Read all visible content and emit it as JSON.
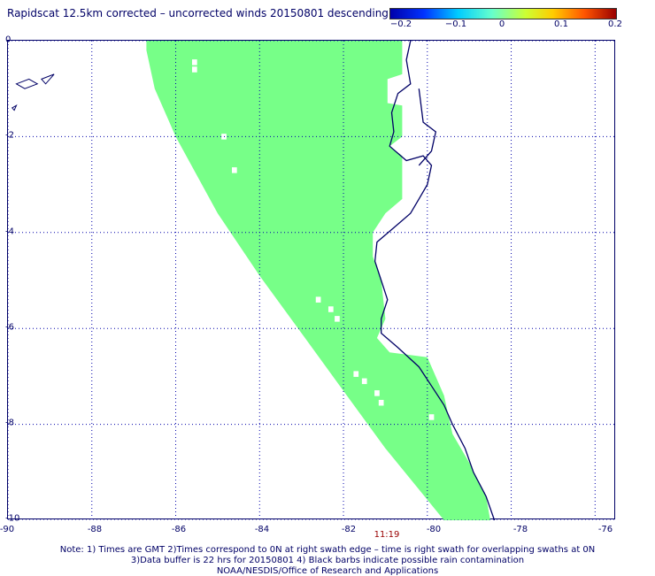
{
  "title": "Rapidscat 12.5km corrected – uncorrected winds 20150801 descending",
  "colorbar": {
    "labels": [
      "−0.2",
      "−0.1",
      "0",
      "0.1",
      "0.2"
    ],
    "range": [
      -0.2,
      0.2
    ]
  },
  "axes": {
    "x_ticks": [
      "-90",
      "-88",
      "-86",
      "-84",
      "-82",
      "-80",
      "-78",
      "-76"
    ],
    "y_ticks": [
      "0",
      "-2",
      "-4",
      "-6",
      "-8",
      "-10"
    ],
    "lon_range": [
      -90,
      -75.5
    ],
    "lat_range": [
      -10,
      0
    ]
  },
  "swath_time": "11:19",
  "notes": [
    "Note: 1) Times are GMT 2)Times correspond to 0N at right swath edge – time is right swath for overlapping swaths at 0N",
    "3)Data buffer is 22 hrs for 20150801 4) Black barbs indicate possible rain contamination",
    "NOAA/NESDIS/Office of Research and Applications"
  ],
  "colors": {
    "swath_fill": "#77ff88",
    "coast": "#000066",
    "grid": "#0000aa",
    "time_label": "#990000"
  },
  "map_data": {
    "swath_polygon_lonlat": [
      [
        -86.7,
        0
      ],
      [
        -80.6,
        0
      ],
      [
        -80.6,
        -0.7
      ],
      [
        -80.95,
        -0.8
      ],
      [
        -80.95,
        -1.3
      ],
      [
        -80.6,
        -1.35
      ],
      [
        -80.6,
        -2.0
      ],
      [
        -80.9,
        -2.2
      ],
      [
        -80.6,
        -2.4
      ],
      [
        -80.6,
        -3.3
      ],
      [
        -81.0,
        -3.6
      ],
      [
        -81.3,
        -4.0
      ],
      [
        -81.3,
        -4.5
      ],
      [
        -81.1,
        -5.0
      ],
      [
        -81.0,
        -5.8
      ],
      [
        -81.2,
        -6.2
      ],
      [
        -80.9,
        -6.5
      ],
      [
        -80.0,
        -6.6
      ],
      [
        -79.6,
        -7.4
      ],
      [
        -79.4,
        -8.2
      ],
      [
        -79.0,
        -8.8
      ],
      [
        -78.6,
        -9.5
      ],
      [
        -78.5,
        -10
      ],
      [
        -79.6,
        -10
      ],
      [
        -81.0,
        -8.5
      ],
      [
        -82.0,
        -7.3
      ],
      [
        -83.0,
        -6.1
      ],
      [
        -84.0,
        -4.9
      ],
      [
        -85.0,
        -3.6
      ],
      [
        -85.5,
        -2.8
      ],
      [
        -86.0,
        -2.0
      ],
      [
        -86.5,
        -1.0
      ],
      [
        -86.7,
        -0.2
      ]
    ],
    "data_gaps_lonlat": [
      [
        -85.55,
        -0.45
      ],
      [
        -85.55,
        -0.6
      ],
      [
        -82.6,
        -5.4
      ],
      [
        -82.3,
        -5.6
      ],
      [
        -82.15,
        -5.8
      ],
      [
        -81.7,
        -6.95
      ],
      [
        -81.5,
        -7.1
      ],
      [
        -81.2,
        -7.35
      ],
      [
        -81.1,
        -7.55
      ],
      [
        -79.9,
        -7.85
      ],
      [
        -84.85,
        -2.0
      ],
      [
        -84.6,
        -2.7
      ]
    ],
    "coastline_lonlat": [
      [
        -80.1,
        0.8
      ],
      [
        -80.2,
        0.4
      ],
      [
        -80.4,
        0
      ],
      [
        -80.5,
        -0.4
      ],
      [
        -80.4,
        -0.9
      ],
      [
        -80.7,
        -1.1
      ],
      [
        -80.85,
        -1.5
      ],
      [
        -80.8,
        -1.9
      ],
      [
        -80.9,
        -2.2
      ],
      [
        -80.5,
        -2.5
      ],
      [
        -80.1,
        -2.4
      ],
      [
        -79.9,
        -2.6
      ],
      [
        -80.0,
        -3.0
      ],
      [
        -80.2,
        -3.3
      ],
      [
        -80.4,
        -3.6
      ],
      [
        -80.8,
        -3.9
      ],
      [
        -81.2,
        -4.2
      ],
      [
        -81.25,
        -4.6
      ],
      [
        -81.1,
        -5.0
      ],
      [
        -80.95,
        -5.4
      ],
      [
        -81.1,
        -5.8
      ],
      [
        -81.1,
        -6.1
      ],
      [
        -80.7,
        -6.4
      ],
      [
        -80.2,
        -6.8
      ],
      [
        -79.9,
        -7.2
      ],
      [
        -79.6,
        -7.6
      ],
      [
        -79.4,
        -8.0
      ],
      [
        -79.1,
        -8.5
      ],
      [
        -78.9,
        -9.0
      ],
      [
        -78.6,
        -9.5
      ],
      [
        -78.4,
        -10.0
      ]
    ],
    "gulf_inlet_lonlat": [
      [
        -80.2,
        -1.0
      ],
      [
        -80.1,
        -1.7
      ],
      [
        -79.8,
        -1.9
      ],
      [
        -79.9,
        -2.3
      ],
      [
        -80.2,
        -2.6
      ]
    ],
    "islands_lonlat": [
      [
        [
          -89.8,
          -0.9
        ],
        [
          -89.5,
          -0.8
        ],
        [
          -89.3,
          -0.9
        ],
        [
          -89.6,
          -1.0
        ]
      ],
      [
        [
          -89.2,
          -0.8
        ],
        [
          -88.9,
          -0.7
        ],
        [
          -89.1,
          -0.9
        ]
      ],
      [
        [
          -89.9,
          -1.4
        ],
        [
          -89.8,
          -1.35
        ],
        [
          -89.85,
          -1.45
        ]
      ]
    ]
  }
}
